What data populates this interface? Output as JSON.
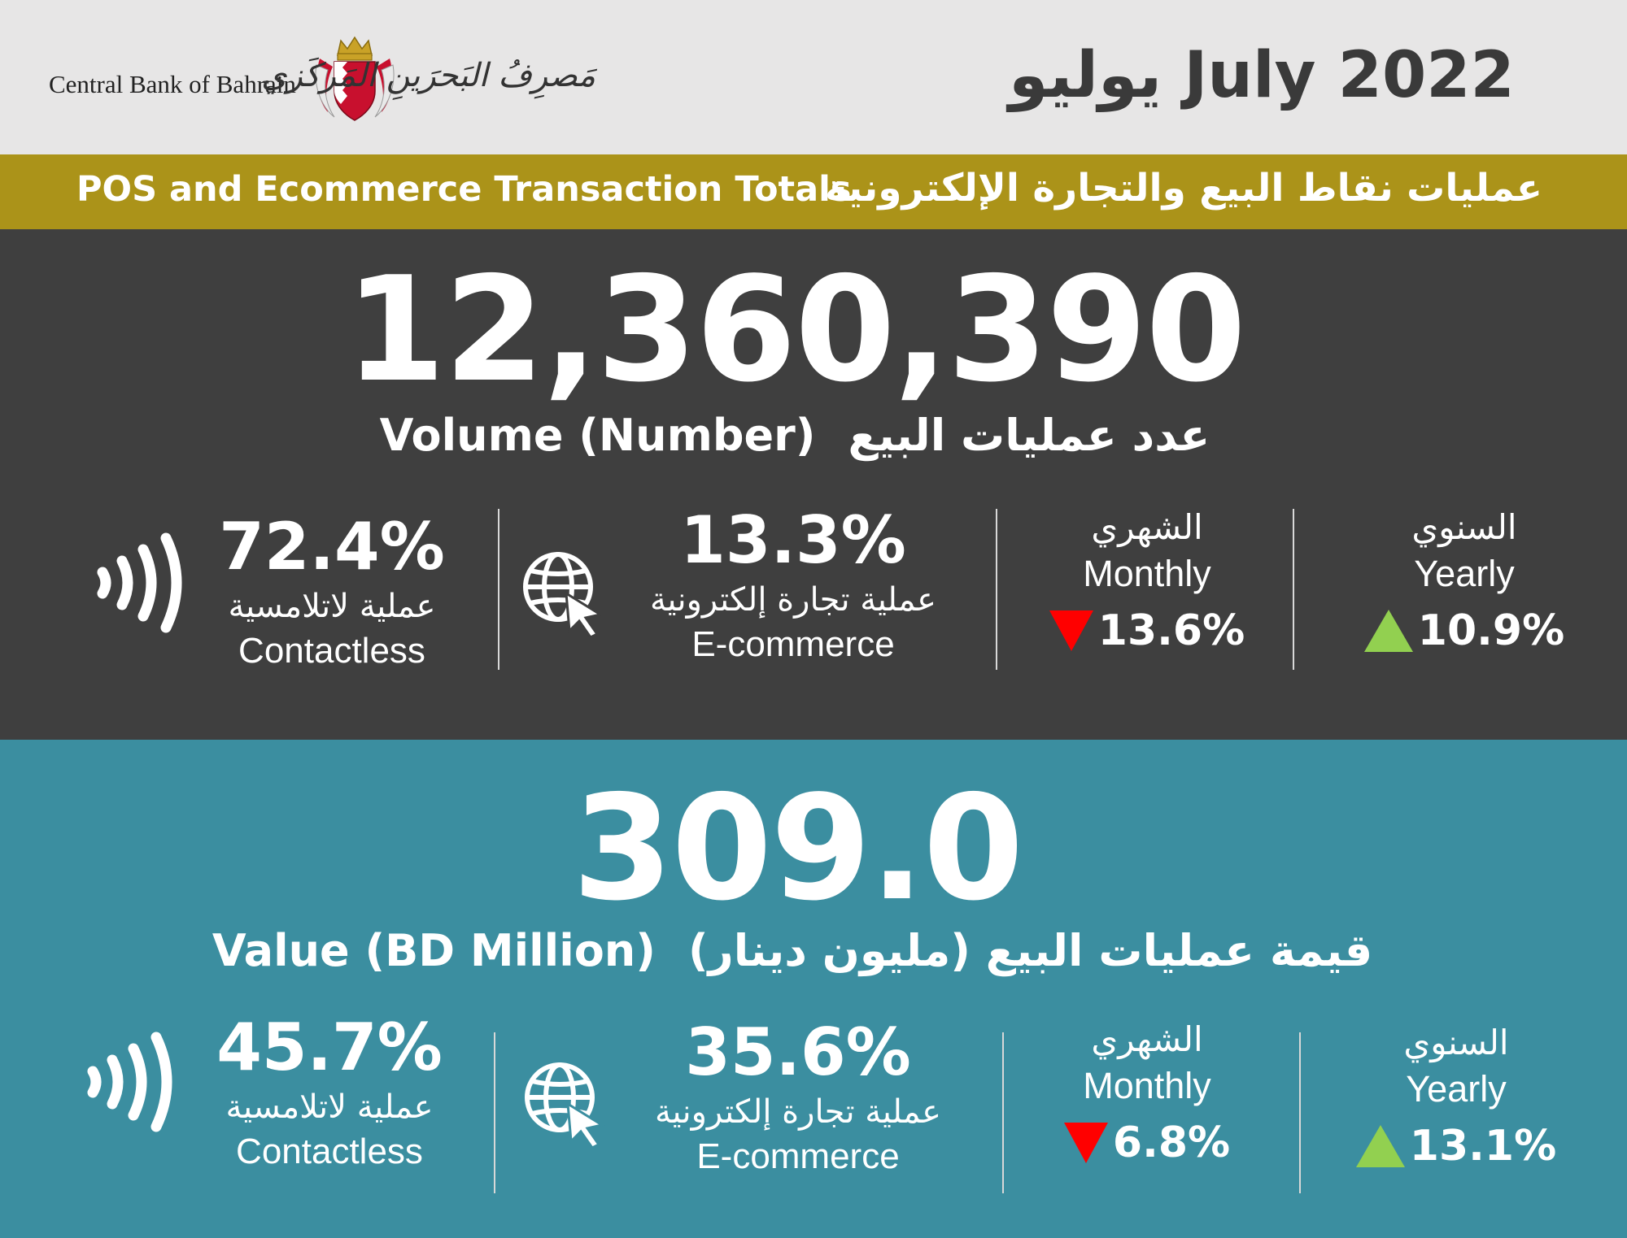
{
  "header": {
    "bank_name_en": "Central Bank of Bahrain",
    "bank_name_ar": "مَصرِفُ البَحرَينِ المَركَزي",
    "date_title": "يوليو July 2022"
  },
  "band": {
    "title_en": "POS and Ecommerce Transaction Totals",
    "title_ar": "عمليات نقاط البيع والتجارة الإلكترونية"
  },
  "volume": {
    "total": "12,360,390",
    "label_en": "Volume (Number)",
    "label_ar": "عدد عمليات البيع",
    "contactless": {
      "percent": "72.4%",
      "label_ar": "عملية لاتلامسية",
      "label_en": "Contactless",
      "icon": "contactless-icon"
    },
    "ecommerce": {
      "percent": "13.3%",
      "label_ar": "عملية تجارة إلكترونية",
      "label_en": "E-commerce",
      "icon": "globe-cursor-icon"
    },
    "monthly": {
      "label_ar": "الشهري",
      "label_en": "Monthly",
      "change": "13.6%",
      "direction": "down",
      "color": "#ff0000"
    },
    "yearly": {
      "label_ar": "السنوي",
      "label_en": "Yearly",
      "change": "10.9%",
      "direction": "up",
      "color": "#92d050"
    }
  },
  "value": {
    "total": "309.0",
    "label_en": "Value (BD Million)",
    "label_ar": "قيمة عمليات البيع (مليون دينار)",
    "contactless": {
      "percent": "45.7%",
      "label_ar": "عملية لاتلامسية",
      "label_en": "Contactless",
      "icon": "contactless-icon"
    },
    "ecommerce": {
      "percent": "35.6%",
      "label_ar": "عملية تجارة إلكترونية",
      "label_en": "E-commerce",
      "icon": "globe-cursor-icon"
    },
    "monthly": {
      "label_ar": "الشهري",
      "label_en": "Monthly",
      "change": "6.8%",
      "direction": "down",
      "color": "#ff0000"
    },
    "yearly": {
      "label_ar": "السنوي",
      "label_en": "Yearly",
      "change": "13.1%",
      "direction": "up",
      "color": "#92d050"
    }
  },
  "colors": {
    "header_bg": "#e7e6e6",
    "band_bg": "#ab9319",
    "volume_bg": "#3f3f3f",
    "value_bg": "#3b8ea0",
    "crest_red": "#c8102e",
    "crest_gold": "#c9a227"
  }
}
